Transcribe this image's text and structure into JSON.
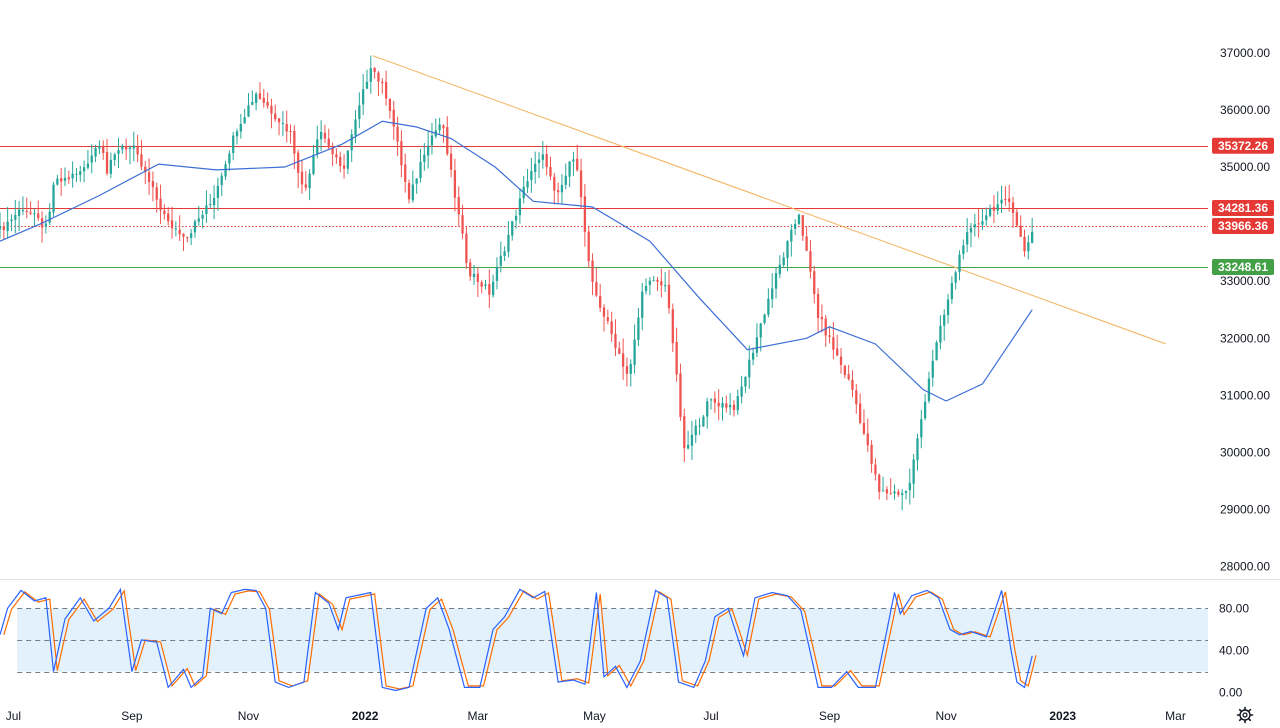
{
  "colors": {
    "up": "#26a69a",
    "down": "#ef5350",
    "ma": "#3d6fd6",
    "trendline": "#f5b766",
    "resistance": "#e53935",
    "support": "#43a047",
    "stoch_k": "#2962ff",
    "stoch_d": "#ff6d00",
    "stoch_band": "#e3f1fc",
    "axis_text": "#131722"
  },
  "chart_data": [
    {
      "type": "candlestick",
      "title": "",
      "ylim": [
        27800,
        37400
      ],
      "y_ticks": [
        {
          "value": 28000,
          "label": "28000.00"
        },
        {
          "value": 29000,
          "label": "29000.00"
        },
        {
          "value": 30000,
          "label": "30000.00"
        },
        {
          "value": 31000,
          "label": "31000.00"
        },
        {
          "value": 32000,
          "label": "32000.00"
        },
        {
          "value": 33000,
          "label": "33000.00"
        },
        {
          "value": 34000,
          "label": "34000.00"
        },
        {
          "value": 35000,
          "label": "35000.00"
        },
        {
          "value": 36000,
          "label": "36000.00"
        },
        {
          "value": 37000,
          "label": "37000.00"
        }
      ],
      "x_range": [
        "2021-06-24",
        "2023-03-18"
      ],
      "x_ticks": [
        {
          "date": "2021-07-01",
          "label": "Jul",
          "bold": false
        },
        {
          "date": "2021-09-01",
          "label": "Sep",
          "bold": false
        },
        {
          "date": "2021-11-01",
          "label": "Nov",
          "bold": false
        },
        {
          "date": "2022-01-01",
          "label": "2022",
          "bold": true
        },
        {
          "date": "2022-03-01",
          "label": "Mar",
          "bold": false
        },
        {
          "date": "2022-05-01",
          "label": "May",
          "bold": false
        },
        {
          "date": "2022-07-01",
          "label": "Jul",
          "bold": false
        },
        {
          "date": "2022-09-01",
          "label": "Sep",
          "bold": false
        },
        {
          "date": "2022-11-01",
          "label": "Nov",
          "bold": false
        },
        {
          "date": "2023-01-01",
          "label": "2023",
          "bold": true
        },
        {
          "date": "2023-03-01",
          "label": "Mar",
          "bold": false
        }
      ],
      "price_path": [
        [
          "2021-06-24",
          33900
        ],
        [
          "2021-07-06",
          34300
        ],
        [
          "2021-07-19",
          33900
        ],
        [
          "2021-07-22",
          34700
        ],
        [
          "2021-08-05",
          34900
        ],
        [
          "2021-08-16",
          35500
        ],
        [
          "2021-08-19",
          34900
        ],
        [
          "2021-08-26",
          35400
        ],
        [
          "2021-09-02",
          35300
        ],
        [
          "2021-09-20",
          34000
        ],
        [
          "2021-09-30",
          33800
        ],
        [
          "2021-10-04",
          34000
        ],
        [
          "2021-10-13",
          34400
        ],
        [
          "2021-10-26",
          35700
        ],
        [
          "2021-11-05",
          36300
        ],
        [
          "2021-11-23",
          35600
        ],
        [
          "2021-11-30",
          34500
        ],
        [
          "2021-12-08",
          35700
        ],
        [
          "2021-12-20",
          34900
        ],
        [
          "2022-01-04",
          36800
        ],
        [
          "2022-01-13",
          36200
        ],
        [
          "2022-01-24",
          34400
        ],
        [
          "2022-02-02",
          35400
        ],
        [
          "2022-02-10",
          35800
        ],
        [
          "2022-02-24",
          33200
        ],
        [
          "2022-03-07",
          32800
        ],
        [
          "2022-03-28",
          34900
        ],
        [
          "2022-04-05",
          35200
        ],
        [
          "2022-04-11",
          34400
        ],
        [
          "2022-04-21",
          35300
        ],
        [
          "2022-04-29",
          33000
        ],
        [
          "2022-05-19",
          31300
        ],
        [
          "2022-05-27",
          33000
        ],
        [
          "2022-06-08",
          32900
        ],
        [
          "2022-06-17",
          30000
        ],
        [
          "2022-06-30",
          30900
        ],
        [
          "2022-07-14",
          30800
        ],
        [
          "2022-08-01",
          32800
        ],
        [
          "2022-08-16",
          34200
        ],
        [
          "2022-08-26",
          32400
        ],
        [
          "2022-09-13",
          31100
        ],
        [
          "2022-09-27",
          29300
        ],
        [
          "2022-10-12",
          29300
        ],
        [
          "2022-10-24",
          31500
        ],
        [
          "2022-11-10",
          33700
        ],
        [
          "2022-11-25",
          34300
        ],
        [
          "2022-12-05",
          34400
        ],
        [
          "2022-12-12",
          33500
        ],
        [
          "2022-12-16",
          33900
        ]
      ],
      "ma_path": [
        [
          "2021-06-24",
          33700
        ],
        [
          "2021-07-15",
          34000
        ],
        [
          "2021-08-15",
          34500
        ],
        [
          "2021-09-15",
          35050
        ],
        [
          "2021-10-15",
          34950
        ],
        [
          "2021-11-20",
          35000
        ],
        [
          "2021-12-20",
          35400
        ],
        [
          "2022-01-10",
          35800
        ],
        [
          "2022-01-28",
          35700
        ],
        [
          "2022-02-15",
          35500
        ],
        [
          "2022-03-10",
          35000
        ],
        [
          "2022-03-30",
          34400
        ],
        [
          "2022-04-30",
          34300
        ],
        [
          "2022-05-30",
          33700
        ],
        [
          "2022-06-25",
          32700
        ],
        [
          "2022-07-20",
          31800
        ],
        [
          "2022-08-20",
          32000
        ],
        [
          "2022-09-01",
          32200
        ],
        [
          "2022-09-25",
          31900
        ],
        [
          "2022-10-20",
          31100
        ],
        [
          "2022-11-01",
          30900
        ],
        [
          "2022-11-20",
          31200
        ],
        [
          "2022-12-16",
          32500
        ]
      ],
      "trendline": {
        "start": [
          "2022-01-05",
          36950
        ],
        "end": [
          "2023-02-24",
          31900
        ]
      },
      "levels": [
        {
          "value": 35372.26,
          "label": "35372.26",
          "style": "solid",
          "color": "#e53935"
        },
        {
          "value": 34281.36,
          "label": "34281.36",
          "style": "solid",
          "color": "#e53935"
        },
        {
          "value": 33966.36,
          "label": "33966.36",
          "style": "dotted",
          "color": "#e53935"
        },
        {
          "value": 33248.61,
          "label": "33248.61",
          "style": "solid",
          "color": "#43a047"
        }
      ],
      "candle_interval_days": 2,
      "candle_half_width_days": 0.6,
      "wick_noise_ratio": 0.5
    },
    {
      "type": "line",
      "title": "",
      "ylim": [
        -7,
        105
      ],
      "y_ticks": [
        {
          "value": 0,
          "label": "0.00"
        },
        {
          "value": 40,
          "label": "40.00"
        },
        {
          "value": 80,
          "label": "80.00"
        }
      ],
      "band": [
        20,
        80
      ],
      "band_start": "2021-07-03",
      "dashed_levels": [
        20,
        50,
        80
      ],
      "series": [
        {
          "values": [
            [
              "2021-06-24",
              55
            ],
            [
              "2021-06-28",
              80
            ],
            [
              "2021-07-05",
              97
            ],
            [
              "2021-07-12",
              87
            ],
            [
              "2021-07-18",
              90
            ],
            [
              "2021-07-22",
              20
            ],
            [
              "2021-07-28",
              70
            ],
            [
              "2021-08-05",
              90
            ],
            [
              "2021-08-12",
              68
            ],
            [
              "2021-08-20",
              80
            ],
            [
              "2021-08-26",
              98
            ],
            [
              "2021-09-01",
              20
            ],
            [
              "2021-09-06",
              50
            ],
            [
              "2021-09-14",
              48
            ],
            [
              "2021-09-20",
              5
            ],
            [
              "2021-09-28",
              22
            ],
            [
              "2021-10-02",
              5
            ],
            [
              "2021-10-08",
              15
            ],
            [
              "2021-10-12",
              80
            ],
            [
              "2021-10-18",
              75
            ],
            [
              "2021-10-23",
              95
            ],
            [
              "2021-10-30",
              98
            ],
            [
              "2021-11-05",
              97
            ],
            [
              "2021-11-10",
              80
            ],
            [
              "2021-11-15",
              10
            ],
            [
              "2021-11-22",
              5
            ],
            [
              "2021-11-30",
              10
            ],
            [
              "2021-12-06",
              95
            ],
            [
              "2021-12-13",
              85
            ],
            [
              "2021-12-18",
              60
            ],
            [
              "2021-12-22",
              90
            ],
            [
              "2022-01-04",
              95
            ],
            [
              "2022-01-10",
              5
            ],
            [
              "2022-01-17",
              2
            ],
            [
              "2022-01-24",
              5
            ],
            [
              "2022-02-02",
              80
            ],
            [
              "2022-02-08",
              90
            ],
            [
              "2022-02-14",
              60
            ],
            [
              "2022-02-22",
              5
            ],
            [
              "2022-03-02",
              5
            ],
            [
              "2022-03-09",
              60
            ],
            [
              "2022-03-15",
              72
            ],
            [
              "2022-03-23",
              98
            ],
            [
              "2022-03-30",
              90
            ],
            [
              "2022-04-05",
              96
            ],
            [
              "2022-04-12",
              10
            ],
            [
              "2022-04-20",
              12
            ],
            [
              "2022-04-26",
              8
            ],
            [
              "2022-05-02",
              95
            ],
            [
              "2022-05-06",
              15
            ],
            [
              "2022-05-12",
              25
            ],
            [
              "2022-05-18",
              5
            ],
            [
              "2022-05-25",
              30
            ],
            [
              "2022-06-02",
              97
            ],
            [
              "2022-06-08",
              90
            ],
            [
              "2022-06-14",
              10
            ],
            [
              "2022-06-22",
              5
            ],
            [
              "2022-06-28",
              30
            ],
            [
              "2022-07-03",
              72
            ],
            [
              "2022-07-10",
              80
            ],
            [
              "2022-07-18",
              35
            ],
            [
              "2022-07-24",
              90
            ],
            [
              "2022-08-02",
              95
            ],
            [
              "2022-08-10",
              92
            ],
            [
              "2022-08-17",
              78
            ],
            [
              "2022-08-26",
              5
            ],
            [
              "2022-09-02",
              5
            ],
            [
              "2022-09-10",
              20
            ],
            [
              "2022-09-16",
              5
            ],
            [
              "2022-09-25",
              5
            ],
            [
              "2022-10-05",
              95
            ],
            [
              "2022-10-08",
              75
            ],
            [
              "2022-10-14",
              92
            ],
            [
              "2022-10-22",
              97
            ],
            [
              "2022-10-28",
              90
            ],
            [
              "2022-11-03",
              60
            ],
            [
              "2022-11-08",
              55
            ],
            [
              "2022-11-14",
              58
            ],
            [
              "2022-11-22",
              53
            ],
            [
              "2022-11-30",
              97
            ],
            [
              "2022-12-05",
              40
            ],
            [
              "2022-12-08",
              10
            ],
            [
              "2022-12-12",
              5
            ],
            [
              "2022-12-16",
              35
            ]
          ]
        }
      ]
    }
  ]
}
